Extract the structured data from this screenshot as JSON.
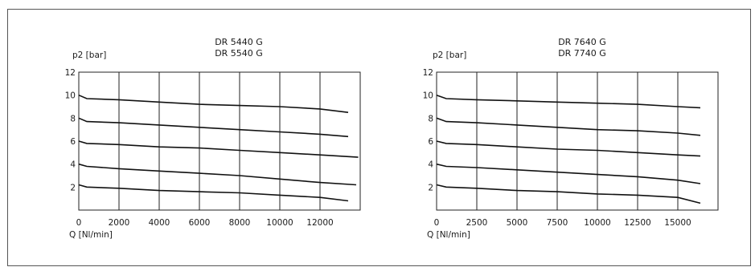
{
  "chart_data": [
    {
      "type": "line",
      "title_lines": [
        "DR 5440 G",
        "DR 5540 G"
      ],
      "ylabel": "p2 [bar]",
      "xlabel": "Q [Nl/min]",
      "xlim": [
        0,
        14000
      ],
      "ylim": [
        0,
        12
      ],
      "x_ticks": [
        0,
        2000,
        4000,
        6000,
        8000,
        10000,
        12000
      ],
      "x_tick_labels": [
        "0",
        "2000",
        "4000",
        "6000",
        "8000",
        "10000",
        "12000"
      ],
      "y_ticks": [
        2,
        4,
        6,
        8,
        10,
        12
      ],
      "y_tick_labels": [
        "2",
        "4",
        "6",
        "8",
        "10",
        "12"
      ],
      "grid": true,
      "series": [
        {
          "x": [
            0,
            400,
            2000,
            4000,
            6000,
            8000,
            10000,
            12000,
            13400
          ],
          "y": [
            10.0,
            9.7,
            9.6,
            9.4,
            9.2,
            9.1,
            9.0,
            8.8,
            8.5
          ]
        },
        {
          "x": [
            0,
            400,
            2000,
            4000,
            6000,
            8000,
            10000,
            12000,
            13400
          ],
          "y": [
            8.0,
            7.7,
            7.6,
            7.4,
            7.2,
            7.0,
            6.8,
            6.6,
            6.4
          ]
        },
        {
          "x": [
            0,
            400,
            2000,
            4000,
            6000,
            8000,
            10000,
            12000,
            13900
          ],
          "y": [
            6.0,
            5.8,
            5.7,
            5.5,
            5.4,
            5.2,
            5.0,
            4.8,
            4.6
          ]
        },
        {
          "x": [
            0,
            400,
            2000,
            4000,
            6000,
            8000,
            10000,
            12000,
            13800
          ],
          "y": [
            4.0,
            3.8,
            3.6,
            3.4,
            3.2,
            3.0,
            2.7,
            2.4,
            2.2
          ]
        },
        {
          "x": [
            0,
            400,
            2000,
            4000,
            6000,
            8000,
            10000,
            12000,
            13400
          ],
          "y": [
            2.2,
            2.0,
            1.9,
            1.7,
            1.6,
            1.5,
            1.3,
            1.1,
            0.8
          ]
        }
      ]
    },
    {
      "type": "line",
      "title_lines": [
        "DR 7640 G",
        "DR 7740 G"
      ],
      "ylabel": "p2 [bar]",
      "xlabel": "Q [Nl/min]",
      "xlim": [
        0,
        17500
      ],
      "ylim": [
        0,
        12
      ],
      "x_ticks": [
        0,
        2500,
        5000,
        7500,
        10000,
        12500,
        15000
      ],
      "x_tick_labels": [
        "0",
        "2500",
        "5000",
        "7500",
        "10000",
        "12500",
        "15000"
      ],
      "y_ticks": [
        2,
        4,
        6,
        8,
        10,
        12
      ],
      "y_tick_labels": [
        "2",
        "4",
        "6",
        "8",
        "10",
        "12"
      ],
      "grid": true,
      "series": [
        {
          "x": [
            0,
            600,
            2500,
            5000,
            7500,
            10000,
            12500,
            15000,
            16400
          ],
          "y": [
            10.0,
            9.7,
            9.6,
            9.5,
            9.4,
            9.3,
            9.2,
            9.0,
            8.9
          ]
        },
        {
          "x": [
            0,
            600,
            2500,
            5000,
            7500,
            10000,
            12500,
            15000,
            16400
          ],
          "y": [
            8.0,
            7.7,
            7.6,
            7.4,
            7.2,
            7.0,
            6.9,
            6.7,
            6.5
          ]
        },
        {
          "x": [
            0,
            600,
            2500,
            5000,
            7500,
            10000,
            12500,
            15000,
            16400
          ],
          "y": [
            6.0,
            5.8,
            5.7,
            5.5,
            5.3,
            5.2,
            5.0,
            4.8,
            4.7
          ]
        },
        {
          "x": [
            0,
            600,
            2500,
            5000,
            7500,
            10000,
            12500,
            15000,
            16400
          ],
          "y": [
            4.0,
            3.8,
            3.7,
            3.5,
            3.3,
            3.1,
            2.9,
            2.6,
            2.3
          ]
        },
        {
          "x": [
            0,
            600,
            2500,
            5000,
            7500,
            10000,
            12500,
            15000,
            16400
          ],
          "y": [
            2.2,
            2.0,
            1.9,
            1.7,
            1.6,
            1.4,
            1.3,
            1.1,
            0.6
          ]
        }
      ]
    }
  ]
}
